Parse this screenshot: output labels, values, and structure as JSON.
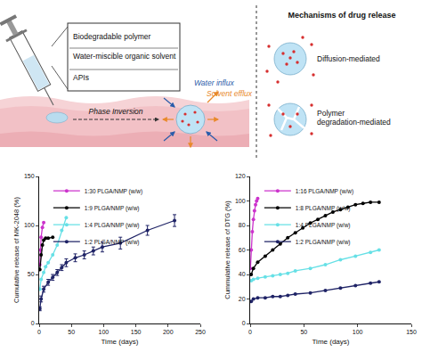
{
  "diagram": {
    "syringe_box": [
      "Biodegradable polymer",
      "Water-miscible organic solvent",
      "APIs"
    ],
    "phase_inversion": "Phase Inversion",
    "water_influx": "Water influx",
    "solvent_efflux": "Solvent efflux",
    "mechanisms": {
      "title": "Mechanisms of drug release",
      "items": [
        "Diffusion-mediated",
        "Polymer degradation-mediated"
      ]
    }
  },
  "chart_data": [
    {
      "type": "line",
      "x_label": "Time (days)",
      "y_label": "Cumulative release of MK-2048 (%)",
      "xlim": [
        0,
        250
      ],
      "xticks": [
        0,
        50,
        100,
        150,
        200,
        250
      ],
      "ylim": [
        0,
        150
      ],
      "yticks": [
        0,
        50,
        100,
        150
      ],
      "grid": false,
      "legend": "upper left",
      "marker": "circle",
      "series": [
        {
          "name": "1:30 PLGA/NMP (w/w)",
          "color": "#cc33cc",
          "x": [
            1,
            2,
            3,
            5,
            7
          ],
          "values": [
            60,
            75,
            88,
            98,
            103
          ]
        },
        {
          "name": "1:9 PLGA/NMP (w/w)",
          "color": "#000000",
          "x": [
            1,
            3,
            5,
            7,
            10,
            14,
            21
          ],
          "values": [
            55,
            70,
            80,
            85,
            87,
            87,
            88
          ]
        },
        {
          "name": "1:4 PLGA/NMP (w/w)",
          "color": "#66e0e6",
          "x": [
            1,
            3,
            7,
            10,
            14,
            21,
            28,
            35,
            42
          ],
          "values": [
            35,
            45,
            52,
            58,
            62,
            70,
            80,
            95,
            108
          ]
        },
        {
          "name": "1:2 PLGA/NMP (w/w)",
          "color": "#1f2366",
          "x": [
            1,
            3,
            7,
            14,
            21,
            28,
            35,
            42,
            56,
            70,
            84,
            98,
            126,
            168,
            210
          ],
          "values": [
            15,
            25,
            35,
            42,
            47,
            52,
            57,
            62,
            67,
            70,
            74,
            78,
            82,
            95,
            105
          ],
          "errors": [
            2,
            3,
            3,
            3,
            3,
            3,
            3,
            4,
            4,
            4,
            4,
            5,
            6,
            5,
            6
          ]
        }
      ]
    },
    {
      "type": "line",
      "x_label": "Time (days)",
      "y_label": "Cummulative release of DTG (%)",
      "xlim": [
        0,
        150
      ],
      "xticks": [
        0,
        50,
        100,
        150
      ],
      "ylim": [
        0,
        120
      ],
      "yticks": [
        0,
        20,
        40,
        60,
        80,
        100,
        120
      ],
      "grid": false,
      "legend": "upper left",
      "marker": "circle",
      "series": [
        {
          "name": "1:16 PLGA/NMP (w/w)",
          "color": "#cc33cc",
          "x": [
            0.25,
            1,
            2,
            3,
            4,
            5,
            6,
            7
          ],
          "values": [
            45,
            60,
            75,
            85,
            92,
            97,
            100,
            102
          ]
        },
        {
          "name": "1:8 PLGA/NMP (w/w)",
          "color": "#000000",
          "x": [
            1,
            3,
            7,
            14,
            21,
            28,
            35,
            42,
            49,
            56,
            63,
            70,
            77,
            84,
            91,
            98,
            105,
            112,
            120
          ],
          "values": [
            40,
            45,
            50,
            55,
            60,
            65,
            70,
            74,
            78,
            82,
            85,
            88,
            91,
            93,
            95,
            97,
            98,
            99,
            99
          ]
        },
        {
          "name": "1:4 PLGA/NMP (w/w)",
          "color": "#66e0e6",
          "x": [
            1,
            3,
            7,
            14,
            21,
            28,
            35,
            42,
            56,
            70,
            84,
            98,
            112,
            120
          ],
          "values": [
            35,
            36,
            37,
            38,
            39,
            40,
            41,
            43,
            45,
            48,
            52,
            55,
            58,
            60
          ]
        },
        {
          "name": "1:2 PLGA/NMP (w/w)",
          "color": "#1f2366",
          "x": [
            1,
            3,
            7,
            14,
            21,
            28,
            35,
            42,
            56,
            70,
            84,
            98,
            112,
            120
          ],
          "values": [
            18,
            20,
            21,
            21,
            22,
            22,
            23,
            24,
            25,
            27,
            29,
            31,
            33,
            34
          ]
        }
      ]
    }
  ]
}
